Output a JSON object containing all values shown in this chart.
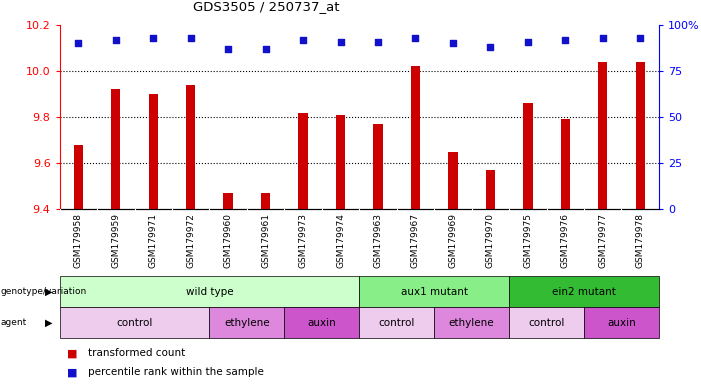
{
  "title": "GDS3505 / 250737_at",
  "samples": [
    "GSM179958",
    "GSM179959",
    "GSM179971",
    "GSM179972",
    "GSM179960",
    "GSM179961",
    "GSM179973",
    "GSM179974",
    "GSM179963",
    "GSM179967",
    "GSM179969",
    "GSM179970",
    "GSM179975",
    "GSM179976",
    "GSM179977",
    "GSM179978"
  ],
  "bar_values": [
    9.68,
    9.92,
    9.9,
    9.94,
    9.47,
    9.47,
    9.82,
    9.81,
    9.77,
    10.02,
    9.65,
    9.57,
    9.86,
    9.79,
    10.04,
    10.04
  ],
  "percentile_values": [
    90,
    92,
    93,
    93,
    87,
    87,
    92,
    91,
    91,
    93,
    90,
    88,
    91,
    92,
    93,
    93
  ],
  "bar_color": "#cc0000",
  "dot_color": "#1111cc",
  "ylim_left": [
    9.4,
    10.2
  ],
  "ylim_right": [
    0,
    100
  ],
  "yticks_left": [
    9.4,
    9.6,
    9.8,
    10.0,
    10.2
  ],
  "yticks_right": [
    0,
    25,
    50,
    75,
    100
  ],
  "grid_values": [
    9.6,
    9.8,
    10.0
  ],
  "genotype_groups": [
    {
      "label": "wild type",
      "start": 0,
      "end": 8,
      "color": "#ccffcc"
    },
    {
      "label": "aux1 mutant",
      "start": 8,
      "end": 12,
      "color": "#88ee88"
    },
    {
      "label": "ein2 mutant",
      "start": 12,
      "end": 16,
      "color": "#33bb33"
    }
  ],
  "agent_groups": [
    {
      "label": "control",
      "start": 0,
      "end": 4,
      "color": "#eeccee"
    },
    {
      "label": "ethylene",
      "start": 4,
      "end": 6,
      "color": "#dd88dd"
    },
    {
      "label": "auxin",
      "start": 6,
      "end": 8,
      "color": "#cc55cc"
    },
    {
      "label": "control",
      "start": 8,
      "end": 10,
      "color": "#eeccee"
    },
    {
      "label": "ethylene",
      "start": 10,
      "end": 12,
      "color": "#dd88dd"
    },
    {
      "label": "control",
      "start": 12,
      "end": 14,
      "color": "#eeccee"
    },
    {
      "label": "auxin",
      "start": 14,
      "end": 16,
      "color": "#cc55cc"
    }
  ],
  "background_color": "#ffffff",
  "xtick_bg": "#dddddd"
}
